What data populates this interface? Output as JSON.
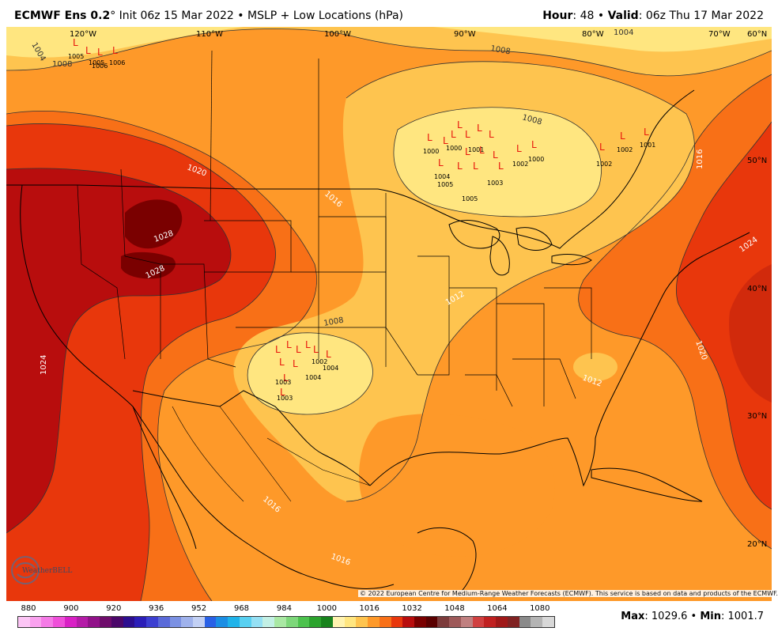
{
  "header": {
    "model": "ECMWF Ens 0.2",
    "init": "° Init 06z 15 Mar 2022 • MSLP + Low Locations (hPa)",
    "hour_label": "Hour",
    "hour_value": ": 48 •",
    "valid_label": "Valid",
    "valid_value": ": 06z Thu 17 Mar 2022"
  },
  "map": {
    "longitude_labels": [
      "120°W",
      "110°W",
      "100°W",
      "90°W",
      "80°W",
      "70°W",
      "60°N"
    ],
    "latitude_labels": [
      "50°N",
      "40°N",
      "30°N",
      "20°N"
    ],
    "contour_labels": [
      "1004",
      "1008",
      "1004",
      "1008",
      "1008",
      "1016",
      "1020",
      "1016",
      "1028",
      "1028",
      "1024",
      "1012",
      "1008",
      "1024",
      "1020",
      "1012",
      "1016",
      "1016"
    ],
    "lows": {
      "labels": [
        "1005",
        "1005",
        "1006",
        "1006",
        "1000",
        "1000",
        "1001",
        "1002",
        "1000",
        "1001",
        "1002",
        "1004",
        "1005",
        "1003",
        "1005",
        "1002",
        "1002",
        "1004",
        "1004",
        "1003",
        "1003"
      ]
    },
    "colors": {
      "lt1008": "#fff3b0",
      "c1008": "#ffe680",
      "c1012": "#fec44f",
      "c1016": "#fe9929",
      "c1020": "#f87017",
      "c1024": "#e8370c",
      "c1028": "#b80d0d",
      "c1032": "#7a0000",
      "land_border": "#000000"
    }
  },
  "copyright": "© 2022 European Centre for Medium-Range Weather Forecasts (ECMWF). This service is based on data and products of the ECMWF.",
  "logo_text": "WeatherBELL",
  "legend": {
    "ticks": [
      "880",
      "900",
      "920",
      "936",
      "952",
      "968",
      "984",
      "1000",
      "1016",
      "1032",
      "1048",
      "1064",
      "1080"
    ],
    "swatches": [
      "#fcc5f5",
      "#f9a1ee",
      "#f57ae6",
      "#ef4fd9",
      "#d920c5",
      "#b41ba7",
      "#911289",
      "#6e0c6b",
      "#4b0769",
      "#2c0e8f",
      "#2b1eb8",
      "#3c3fd1",
      "#5a6ad9",
      "#7b91e3",
      "#9fb2ec",
      "#c2d0f4",
      "#2961e6",
      "#1b8ee4",
      "#1fb3ea",
      "#58d0f1",
      "#95e0f4",
      "#c3f0e5",
      "#a9e8a3",
      "#7dd77a",
      "#4cc24d",
      "#2ba32d",
      "#18831d",
      "#fff3b0",
      "#ffe680",
      "#fec44f",
      "#fe9929",
      "#f87017",
      "#e8370c",
      "#b80d0d",
      "#7a0000",
      "#5a0000",
      "#7c3b3b",
      "#9e5a5a",
      "#c08080",
      "#d04040",
      "#c02020",
      "#a01818",
      "#802222",
      "#8a8a8a",
      "#b4b4b4",
      "#d8d8d8"
    ]
  },
  "stats": {
    "max_label": "Max",
    "max_value": ": 1029.6 •",
    "min_label": "Min",
    "min_value": ": 1001.7"
  }
}
